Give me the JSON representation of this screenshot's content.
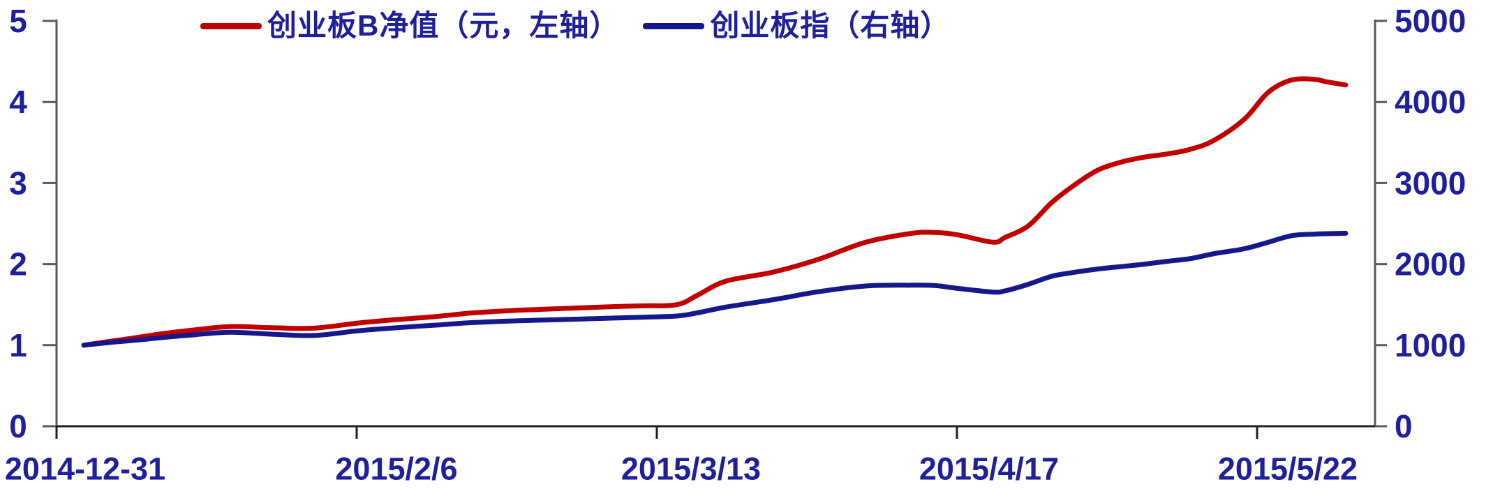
{
  "chart_data": {
    "type": "line",
    "title": "",
    "legend_position": "top",
    "background": "#FFFFFF",
    "text_color": "#1F1F9C",
    "grid": false,
    "series": [
      {
        "name": "创业板B净值（元，左轴）",
        "axis": "left",
        "color": "#C00000",
        "x_frac": [
          0,
          0.0221,
          0.0442,
          0.0664,
          0.0885,
          0.1162,
          0.1493,
          0.1825,
          0.2157,
          0.2434,
          0.2766,
          0.3097,
          0.3429,
          0.3761,
          0.4093,
          0.4425,
          0.4701,
          0.4867,
          0.5088,
          0.5459,
          0.5824,
          0.6195,
          0.6565,
          0.6748,
          0.693,
          0.7207,
          0.7301,
          0.7483,
          0.7671,
          0.7854,
          0.8036,
          0.8224,
          0.8407,
          0.8589,
          0.8777,
          0.896,
          0.9198,
          0.9386,
          0.9569,
          0.9751,
          0.9845,
          1
        ],
        "values": [
          1.0,
          1.05,
          1.1,
          1.15,
          1.19,
          1.23,
          1.215,
          1.21,
          1.27,
          1.31,
          1.35,
          1.4,
          1.43,
          1.45,
          1.47,
          1.485,
          1.5,
          1.62,
          1.79,
          1.9,
          2.06,
          2.27,
          2.38,
          2.39,
          2.36,
          2.27,
          2.33,
          2.47,
          2.76,
          2.98,
          3.16,
          3.26,
          3.32,
          3.36,
          3.42,
          3.53,
          3.79,
          4.12,
          4.27,
          4.28,
          4.25,
          4.21
        ]
      },
      {
        "name": "创业板指（右轴）",
        "axis": "right",
        "color": "#17178C",
        "x_frac": [
          0,
          0.0221,
          0.0442,
          0.0664,
          0.0885,
          0.1162,
          0.1493,
          0.1825,
          0.2157,
          0.2434,
          0.2766,
          0.3097,
          0.3429,
          0.3761,
          0.4093,
          0.4425,
          0.4701,
          0.4867,
          0.5088,
          0.5459,
          0.5824,
          0.6195,
          0.6565,
          0.6748,
          0.693,
          0.7207,
          0.7301,
          0.7483,
          0.7671,
          0.7854,
          0.8036,
          0.8224,
          0.8407,
          0.8589,
          0.8777,
          0.896,
          0.9198,
          0.9386,
          0.9569,
          0.9751,
          0.9845,
          1
        ],
        "values": [
          1000,
          1035,
          1065,
          1100,
          1130,
          1160,
          1135,
          1120,
          1175,
          1210,
          1245,
          1280,
          1300,
          1315,
          1330,
          1345,
          1360,
          1400,
          1470,
          1560,
          1660,
          1730,
          1740,
          1735,
          1700,
          1655,
          1670,
          1750,
          1850,
          1900,
          1940,
          1970,
          2000,
          2035,
          2070,
          2130,
          2190,
          2270,
          2350,
          2370,
          2375,
          2380
        ]
      }
    ],
    "left_axis": {
      "min": 0,
      "max": 5,
      "tick_labels": [
        "0",
        "1",
        "2",
        "3",
        "4",
        "5"
      ]
    },
    "right_axis": {
      "min": 0,
      "max": 5000,
      "tick_labels": [
        "0",
        "1000",
        "2000",
        "3000",
        "4000",
        "5000"
      ]
    },
    "x_axis": {
      "tick_labels": [
        "2014-12-31",
        "2015/2/6",
        "2015/3/13",
        "2015/4/17",
        "2015/5/22"
      ]
    }
  }
}
